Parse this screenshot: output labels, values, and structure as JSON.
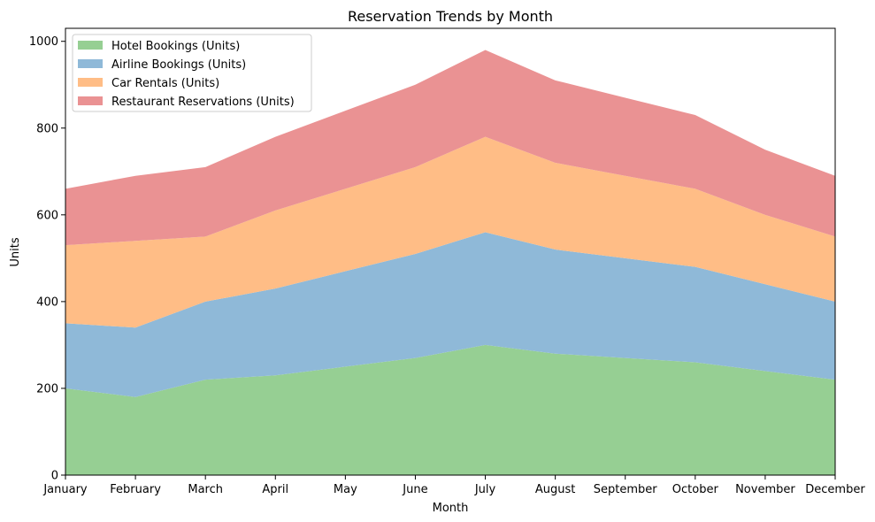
{
  "chart_data": {
    "type": "area",
    "stacked": true,
    "title": "Reservation Trends by Month",
    "xlabel": "Month",
    "ylabel": "Units",
    "categories": [
      "January",
      "February",
      "March",
      "April",
      "May",
      "June",
      "July",
      "August",
      "September",
      "October",
      "November",
      "December"
    ],
    "ylim": [
      0,
      1030
    ],
    "yticks": [
      0,
      200,
      400,
      600,
      800,
      1000
    ],
    "grid": false,
    "legend_position": "top-left",
    "series": [
      {
        "name": "Hotel Bookings (Units)",
        "color": "#96cf93",
        "values": [
          200,
          180,
          220,
          230,
          250,
          270,
          300,
          280,
          270,
          260,
          240,
          220
        ]
      },
      {
        "name": "Airline Bookings (Units)",
        "color": "#8fb9d8",
        "values": [
          150,
          160,
          180,
          200,
          220,
          240,
          260,
          240,
          230,
          220,
          200,
          180
        ]
      },
      {
        "name": "Car Rentals (Units)",
        "color": "#ffbd86",
        "values": [
          180,
          200,
          150,
          180,
          190,
          200,
          220,
          200,
          190,
          180,
          160,
          150
        ]
      },
      {
        "name": "Restaurant Reservations (Units)",
        "color": "#ea9293",
        "values": [
          130,
          150,
          160,
          170,
          180,
          190,
          200,
          190,
          180,
          170,
          150,
          140
        ]
      }
    ]
  }
}
